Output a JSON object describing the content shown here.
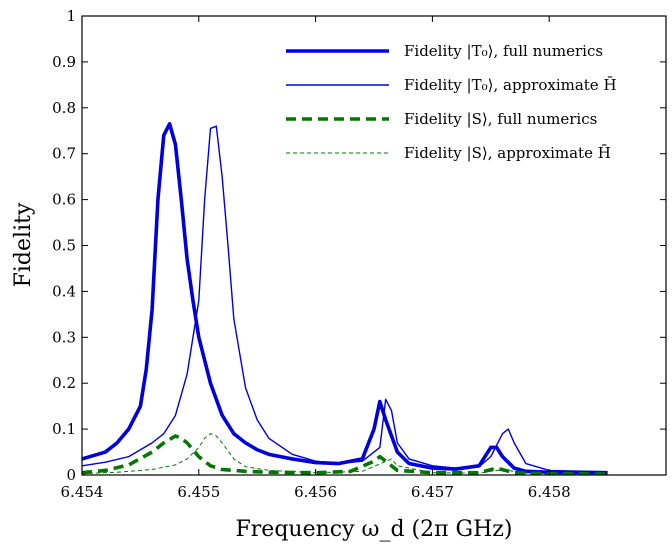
{
  "chart_data": {
    "type": "line",
    "title": "",
    "xlabel": "Frequency ω_d (2π GHz)",
    "ylabel": "Fidelity",
    "xlim": [
      6.454,
      6.459
    ],
    "ylim": [
      0,
      1
    ],
    "xticks": [
      6.454,
      6.455,
      6.456,
      6.457,
      6.458
    ],
    "yticks": [
      0,
      0.1,
      0.2,
      0.3,
      0.4,
      0.5,
      0.6,
      0.7,
      0.8,
      0.9,
      1
    ],
    "grid": false,
    "legend_position": "top-right",
    "series": [
      {
        "name": "Fidelity |T₀⟩, full numerics",
        "color": "#0000dd",
        "style": "solid-thick",
        "x": [
          6.454,
          6.4542,
          6.4543,
          6.4544,
          6.4545,
          6.45455,
          6.4546,
          6.45465,
          6.4547,
          6.45475,
          6.4548,
          6.45485,
          6.4549,
          6.45495,
          6.455,
          6.4551,
          6.4552,
          6.4553,
          6.4554,
          6.4555,
          6.4556,
          6.4558,
          6.456,
          6.4562,
          6.4564,
          6.4565,
          6.45655,
          6.4566,
          6.4567,
          6.4568,
          6.457,
          6.4572,
          6.4574,
          6.4575,
          6.45755,
          6.4576,
          6.4577,
          6.4578,
          6.458,
          6.4585
        ],
        "y": [
          0.035,
          0.05,
          0.07,
          0.1,
          0.15,
          0.23,
          0.36,
          0.6,
          0.74,
          0.765,
          0.72,
          0.6,
          0.47,
          0.38,
          0.3,
          0.2,
          0.13,
          0.09,
          0.07,
          0.055,
          0.045,
          0.035,
          0.027,
          0.025,
          0.035,
          0.1,
          0.16,
          0.12,
          0.05,
          0.025,
          0.015,
          0.013,
          0.02,
          0.06,
          0.06,
          0.04,
          0.015,
          0.008,
          0.006,
          0.005
        ]
      },
      {
        "name": "Fidelity |T₀⟩, approximate H̄",
        "color": "#0000dd",
        "style": "solid-thin",
        "x": [
          6.454,
          6.4542,
          6.4544,
          6.4546,
          6.4547,
          6.4548,
          6.4549,
          6.455,
          6.45505,
          6.4551,
          6.45515,
          6.4552,
          6.45525,
          6.4553,
          6.4554,
          6.4555,
          6.4556,
          6.4558,
          6.456,
          6.4562,
          6.4564,
          6.45655,
          6.4566,
          6.45665,
          6.4567,
          6.4568,
          6.457,
          6.4572,
          6.4574,
          6.4575,
          6.4576,
          6.45765,
          6.4577,
          6.4578,
          6.458,
          6.4585
        ],
        "y": [
          0.02,
          0.028,
          0.04,
          0.07,
          0.09,
          0.13,
          0.22,
          0.38,
          0.6,
          0.755,
          0.76,
          0.65,
          0.5,
          0.34,
          0.19,
          0.12,
          0.08,
          0.045,
          0.03,
          0.025,
          0.03,
          0.06,
          0.165,
          0.14,
          0.07,
          0.035,
          0.02,
          0.015,
          0.018,
          0.04,
          0.09,
          0.1,
          0.07,
          0.025,
          0.01,
          0.007
        ]
      },
      {
        "name": "Fidelity |S⟩, full numerics",
        "color": "#007700",
        "style": "dashed-thick",
        "x": [
          6.454,
          6.4542,
          6.4544,
          6.4546,
          6.4547,
          6.4548,
          6.45485,
          6.4549,
          6.455,
          6.4551,
          6.4552,
          6.4554,
          6.4556,
          6.456,
          6.4563,
          6.4565,
          6.45655,
          6.4566,
          6.4567,
          6.457,
          6.4574,
          6.45755,
          6.4577,
          6.458,
          6.4585
        ],
        "y": [
          0.005,
          0.01,
          0.022,
          0.05,
          0.07,
          0.085,
          0.08,
          0.07,
          0.04,
          0.02,
          0.012,
          0.008,
          0.006,
          0.005,
          0.008,
          0.03,
          0.04,
          0.03,
          0.01,
          0.005,
          0.005,
          0.015,
          0.005,
          0.003,
          0.002
        ]
      },
      {
        "name": "Fidelity |S⟩, approximate H̄",
        "color": "#007700",
        "style": "dashed-thin",
        "x": [
          6.454,
          6.4543,
          6.4546,
          6.4548,
          6.4549,
          6.455,
          6.45505,
          6.4551,
          6.45515,
          6.4552,
          6.4553,
          6.4554,
          6.4556,
          6.456,
          6.4564,
          6.45665,
          6.4567,
          6.457,
          6.4574,
          6.4576,
          6.4578,
          6.458,
          6.4585
        ],
        "y": [
          0.003,
          0.006,
          0.012,
          0.022,
          0.035,
          0.06,
          0.08,
          0.09,
          0.085,
          0.07,
          0.035,
          0.018,
          0.01,
          0.005,
          0.008,
          0.035,
          0.02,
          0.005,
          0.004,
          0.012,
          0.004,
          0.002,
          0.002
        ]
      }
    ]
  }
}
